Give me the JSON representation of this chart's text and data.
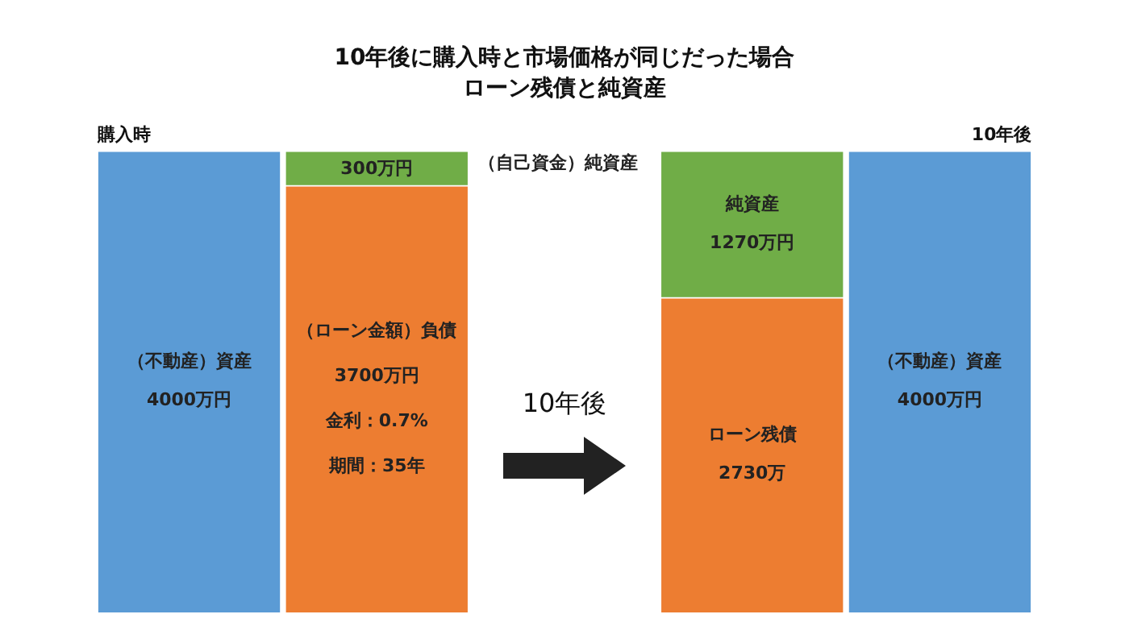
{
  "chart_data": {
    "type": "bar",
    "stacked": true,
    "title": "10年後に購入時と市場価格が同じだった場合",
    "subtitle": "ローン残債と純資産",
    "categories": [
      null,
      null,
      null,
      null
    ],
    "series": [
      {
        "colors": [
          "#5b9bd5",
          "#ed7d31",
          "#ed7d31",
          "#5b9bd5"
        ],
        "values": [
          4000,
          3700,
          2730,
          4000
        ],
        "value_labels": [
          "4000万円",
          "3700万円",
          "2730万",
          "4000万円"
        ]
      },
      {
        "color": "#70ad47",
        "values": [
          null,
          300,
          1270,
          null
        ],
        "value_labels": [
          null,
          "300万円",
          "1270万円",
          null
        ]
      }
    ],
    "annotations": [
      "購入時",
      "10年後",
      "10年後",
      "（不動産）資産",
      "（ローン金額）負債",
      "金利：0.7%",
      "期間：35年",
      "（自己資金）純資産",
      "純資産",
      "ローン残債",
      "（不動産）資産"
    ],
    "legend": false
  }
}
